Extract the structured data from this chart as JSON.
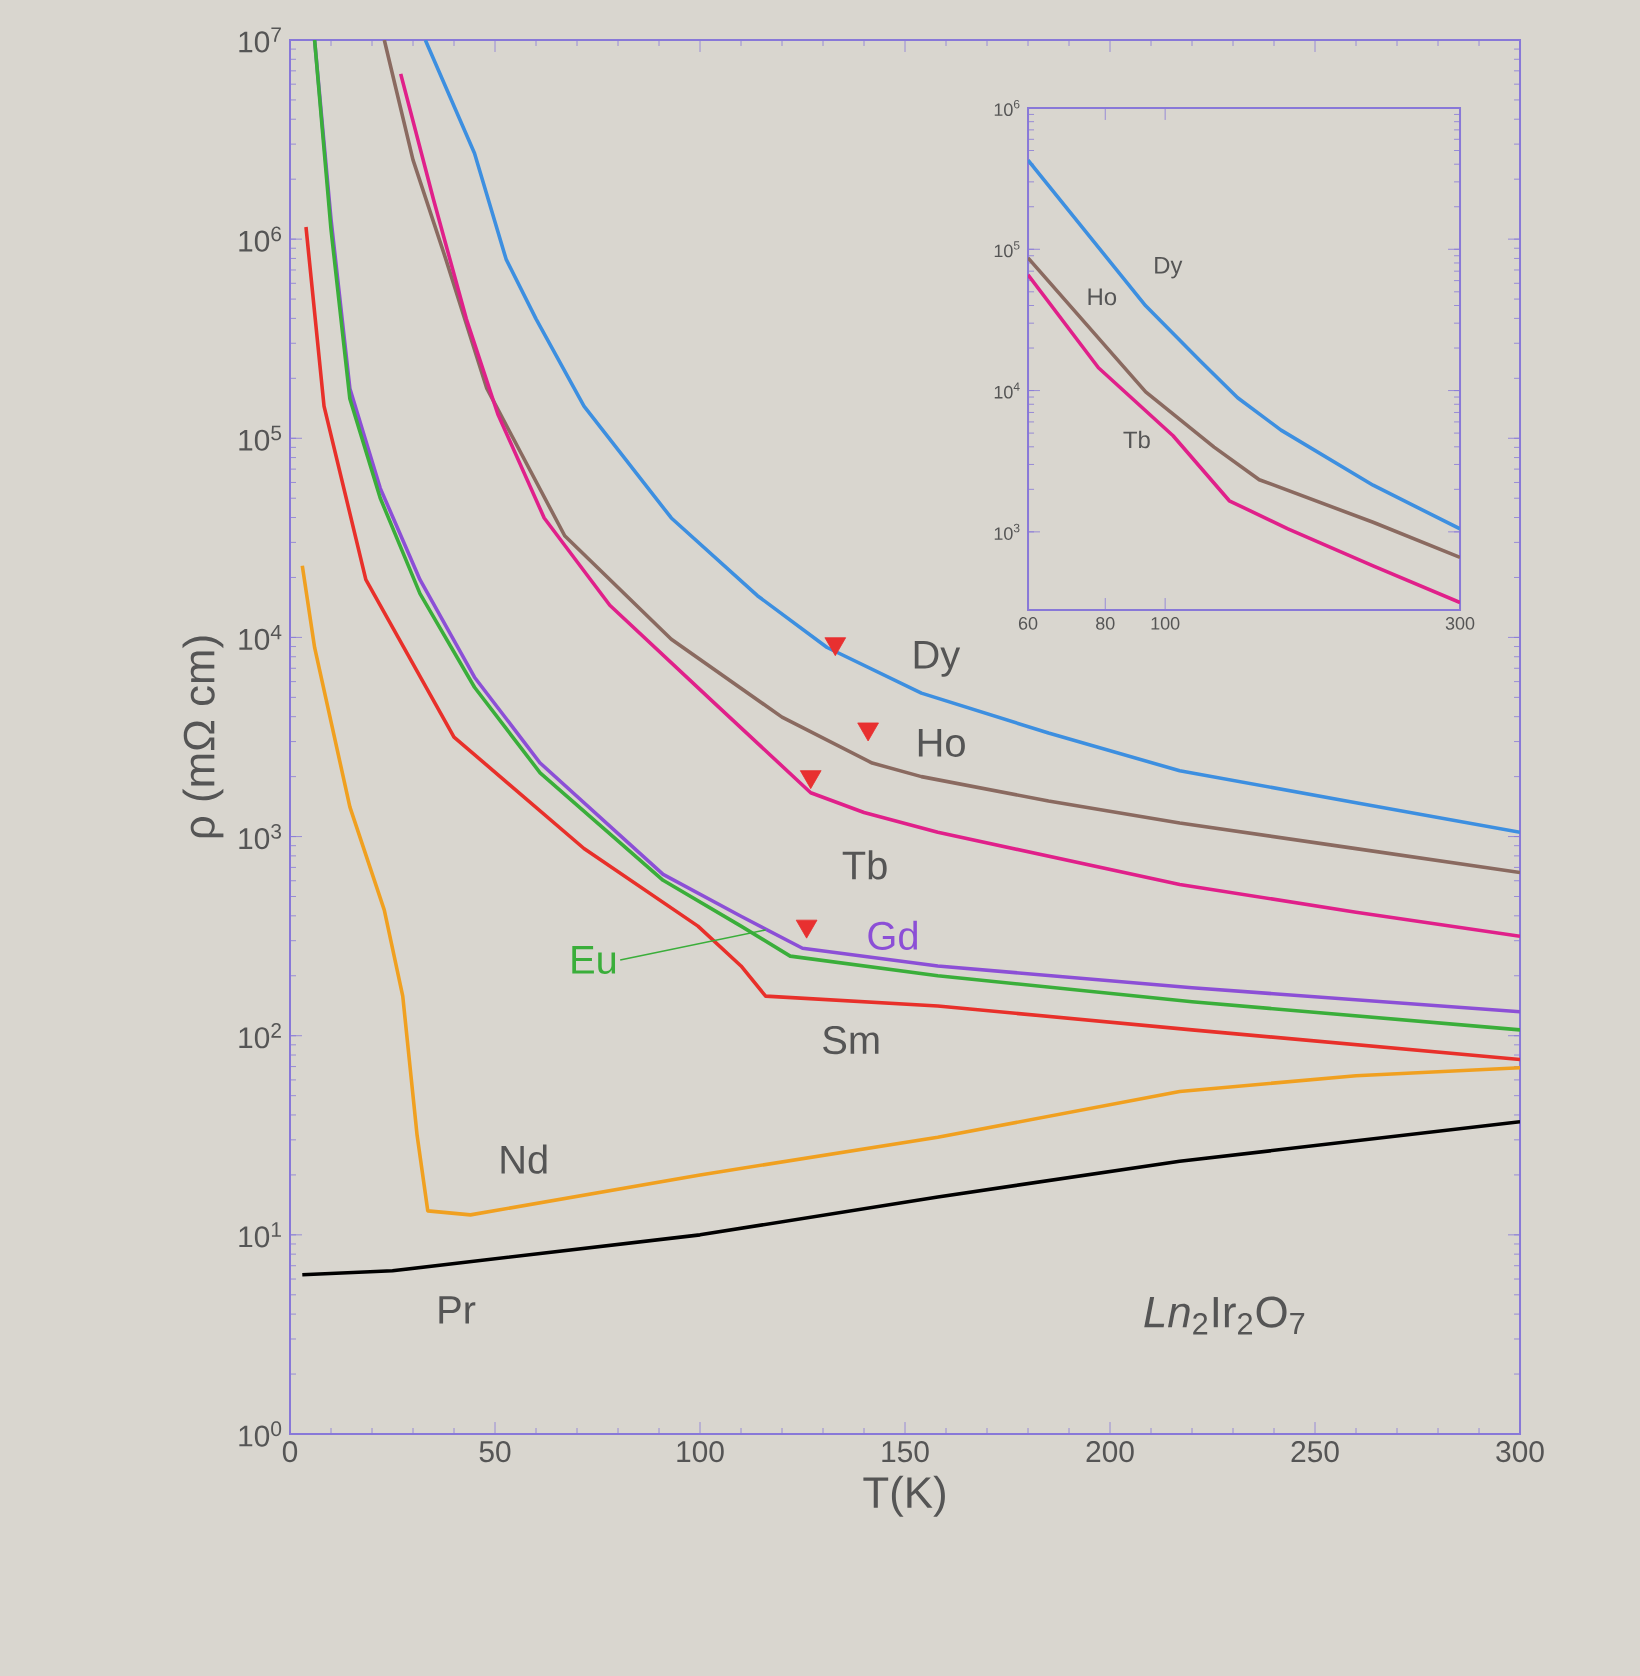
{
  "chart_data": [
    {
      "type": "line",
      "xlabel": "T(K)",
      "ylabel": "ρ (mΩ cm)",
      "log": "y",
      "xlim": [
        0,
        300
      ],
      "xticks": [
        0,
        50,
        100,
        150,
        200,
        250,
        300
      ],
      "ylim": [
        1,
        10000000
      ],
      "yticks": [
        {
          "value": 1,
          "label": "10$^{0}$"
        },
        {
          "value": 10,
          "label": "10$^{1}$"
        },
        {
          "value": 100,
          "label": "10$^{2}$"
        },
        {
          "value": 1000,
          "label": "10$^{3}$"
        },
        {
          "value": 10000,
          "label": "10$^{4}$"
        },
        {
          "value": 100000,
          "label": "10$^{5}$"
        },
        {
          "value": 1000000,
          "label": "10$^{6}$"
        },
        {
          "value": 10000000,
          "label": "10$^{7}$"
        }
      ],
      "annotations": [
        "*Ln*$_{2}$Ir$_{2}$O$_{7}$"
      ],
      "series": [
        {
          "name": "Dy",
          "color": "#3d8fe0",
          "x": [
            33,
            45,
            52.7,
            60,
            71.7,
            93,
            114,
            131,
            154,
            185,
            217,
            260,
            300
          ],
          "values": [
            10000000,
            2700000,
            794000,
            398000,
            145000,
            39800,
            16200,
            8900,
            5250,
            3310,
            2140,
            1480,
            1050
          ]
        },
        {
          "name": "Ho",
          "color": "#8a6a60",
          "x": [
            23,
            30,
            38,
            48,
            67,
            93,
            120,
            142,
            154,
            185,
            217,
            260,
            300
          ],
          "values": [
            10000000,
            2500000,
            794000,
            178000,
            32400,
            9800,
            3980,
            2340,
            2000,
            1510,
            1170,
            870,
            660
          ]
        },
        {
          "name": "Tb",
          "color": "#e0208a",
          "x": [
            27,
            35,
            43,
            50.7,
            62,
            78,
            103,
            127,
            140,
            158,
            217,
            260,
            300
          ],
          "values": [
            6760000,
            1580000,
            398000,
            132000,
            39800,
            14500,
            4790,
            1660,
            1320,
            1050,
            575,
            417,
            316
          ]
        },
        {
          "name": "Gd",
          "color": "#8c4fd6",
          "x": [
            6,
            10,
            14.6,
            22,
            31.7,
            45,
            61,
            91,
            110,
            125,
            158,
            220,
            300
          ],
          "values": [
            10000000,
            1260000,
            178000,
            56200,
            19500,
            6310,
            2340,
            646,
            398,
            275,
            224,
            174,
            132
          ]
        },
        {
          "name": "Eu",
          "color": "#3aae3a",
          "x": [
            6,
            10,
            14.6,
            22,
            31.7,
            45,
            61,
            91,
            110,
            122,
            158,
            220,
            300
          ],
          "values": [
            10000000,
            1120000,
            158000,
            50100,
            16600,
            5620,
            2090,
            603,
            355,
            251,
            200,
            148,
            107
          ]
        },
        {
          "name": "Sm",
          "color": "#e8302a",
          "x": [
            3.9,
            8.3,
            18.5,
            40,
            71.7,
            99.5,
            110,
            116,
            158,
            220,
            300
          ],
          "values": [
            1150000,
            145000,
            19500,
            3160,
            871,
            355,
            224,
            158,
            141,
            107,
            76
          ]
        },
        {
          "name": "Nd",
          "color": "#f0a020",
          "x": [
            3,
            6,
            14.6,
            23,
            27.5,
            31,
            33.6,
            44,
            100,
            158,
            217,
            260,
            300
          ],
          "values": [
            22900,
            8910,
            1410,
            427,
            158,
            31.6,
            13.2,
            12.6,
            20,
            30.9,
            52.5,
            63,
            69
          ]
        },
        {
          "name": "Pr",
          "color": "#000000",
          "x": [
            3,
            25,
            100,
            158,
            217,
            300
          ],
          "values": [
            6.3,
            6.6,
            10,
            15.5,
            23.4,
            37
          ]
        },
        {
          "type": "scatter",
          "marker": "triangle",
          "color": "#e83030",
          "x": [
            133,
            141,
            127,
            126
          ],
          "values": [
            9300,
            3470,
            2000,
            355
          ]
        }
      ]
    },
    {
      "type": "line",
      "log": "xy",
      "xlim": [
        60,
        300
      ],
      "xticks": [
        60,
        80,
        100,
        300
      ],
      "ylim": [
        280,
        1000000
      ],
      "yticks": [
        {
          "value": 1000,
          "label": "10$^{3}$"
        },
        {
          "value": 10000,
          "label": "10$^{4}$"
        },
        {
          "value": 100000,
          "label": "10$^{5}$"
        },
        {
          "value": 1000000,
          "label": "10$^{6}$"
        }
      ],
      "series": [
        {
          "name": "Dy",
          "color": "#3d8fe0",
          "x": [
            60,
            93,
            114,
            131,
            154,
            217,
            300
          ],
          "values": [
            427000,
            39800,
            16200,
            8900,
            5250,
            2140,
            1050
          ]
        },
        {
          "name": "Ho",
          "color": "#8a6a60",
          "x": [
            60,
            93,
            120,
            142,
            217,
            300
          ],
          "values": [
            87000,
            9800,
            3980,
            2340,
            1170,
            660
          ]
        },
        {
          "name": "Tb",
          "color": "#e0208a",
          "x": [
            60,
            78,
            103,
            127,
            158,
            217,
            300
          ],
          "values": [
            66000,
            14500,
            4790,
            1660,
            1050,
            575,
            316
          ]
        }
      ]
    }
  ]
}
